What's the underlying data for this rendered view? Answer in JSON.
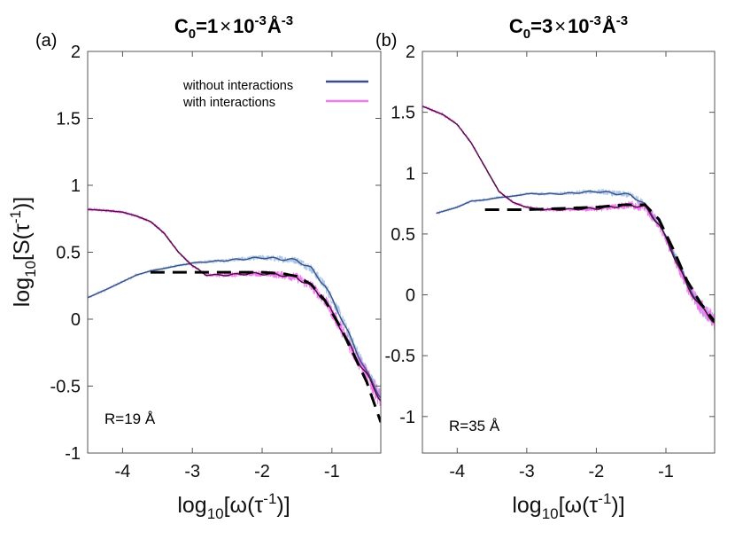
{
  "colors": {
    "without": "#3b4f87",
    "without_light": "#a9c6e6",
    "with": "#4a0d3e",
    "with_light": "#f17cf0",
    "dashed": "#000000"
  },
  "chart_data": [
    {
      "type": "line",
      "panel_label": "(a)",
      "title_parts": {
        "c": "C",
        "c_sub": "0",
        "eq": "=1",
        "times": "×",
        "ten": "10",
        "exp1": "-3",
        "unit": "Å",
        "exp2": "-3"
      },
      "xlabel_parts": {
        "pre": "log",
        "sub": "10",
        "post": "[ω(τ",
        "sup": "-1",
        "end": ")]"
      },
      "ylabel_parts": {
        "pre": "log",
        "sub": "10",
        "post": "[S(τ",
        "sup": "-1",
        "end": ")]"
      },
      "xlim": [
        -4.5,
        -0.3
      ],
      "ylim": [
        -1,
        2
      ],
      "xticks": [
        -4,
        -3,
        -2,
        -1
      ],
      "xtick_labels": [
        "-4",
        "-3",
        "-2",
        "-1"
      ],
      "yticks": [
        -1,
        -0.5,
        0,
        0.5,
        1,
        1.5,
        2
      ],
      "ytick_labels": [
        "-1",
        "-0.5",
        "0",
        "0.5",
        "1",
        "1.5",
        "2"
      ],
      "annotation": "R=19 Å",
      "legend": [
        "without interactions",
        "with interactions"
      ],
      "series": [
        {
          "name": "without interactions",
          "points": [
            [
              -4.5,
              0.16
            ],
            [
              -4.2,
              0.23
            ],
            [
              -4.0,
              0.28
            ],
            [
              -3.8,
              0.33
            ],
            [
              -3.6,
              0.36
            ],
            [
              -3.4,
              0.38
            ],
            [
              -3.2,
              0.4
            ],
            [
              -3.0,
              0.42
            ],
            [
              -2.5,
              0.44
            ],
            [
              -2.0,
              0.46
            ],
            [
              -1.5,
              0.44
            ],
            [
              -1.3,
              0.38
            ],
            [
              -1.1,
              0.25
            ],
            [
              -0.9,
              0.05
            ],
            [
              -0.7,
              -0.18
            ],
            [
              -0.5,
              -0.4
            ],
            [
              -0.3,
              -0.58
            ]
          ]
        },
        {
          "name": "with interactions",
          "points": [
            [
              -4.5,
              0.82
            ],
            [
              -4.2,
              0.81
            ],
            [
              -4.0,
              0.8
            ],
            [
              -3.8,
              0.77
            ],
            [
              -3.6,
              0.73
            ],
            [
              -3.4,
              0.64
            ],
            [
              -3.2,
              0.5
            ],
            [
              -3.0,
              0.4
            ],
            [
              -2.8,
              0.33
            ],
            [
              -2.5,
              0.33
            ],
            [
              -2.2,
              0.34
            ],
            [
              -2.0,
              0.34
            ],
            [
              -1.7,
              0.33
            ],
            [
              -1.5,
              0.31
            ],
            [
              -1.3,
              0.25
            ],
            [
              -1.1,
              0.14
            ],
            [
              -0.9,
              -0.04
            ],
            [
              -0.7,
              -0.24
            ],
            [
              -0.5,
              -0.42
            ],
            [
              -0.3,
              -0.6
            ]
          ]
        },
        {
          "name": "fit",
          "style": "dashed",
          "points": [
            [
              -3.6,
              0.35
            ],
            [
              -3.0,
              0.35
            ],
            [
              -2.5,
              0.35
            ],
            [
              -2.0,
              0.35
            ],
            [
              -1.7,
              0.34
            ],
            [
              -1.5,
              0.32
            ],
            [
              -1.3,
              0.26
            ],
            [
              -1.1,
              0.14
            ],
            [
              -0.9,
              -0.04
            ],
            [
              -0.7,
              -0.25
            ],
            [
              -0.5,
              -0.47
            ],
            [
              -0.3,
              -0.77
            ]
          ]
        }
      ]
    },
    {
      "type": "line",
      "panel_label": "(b)",
      "title_parts": {
        "c": "C",
        "c_sub": "0",
        "eq": "=3",
        "times": "×",
        "ten": "10",
        "exp1": "-3",
        "unit": "Å",
        "exp2": "-3"
      },
      "xlabel_parts": {
        "pre": "log",
        "sub": "10",
        "post": "[ω(τ",
        "sup": "-1",
        "end": ")]"
      },
      "xlim": [
        -4.5,
        -0.3
      ],
      "ylim": [
        -1.3,
        2
      ],
      "xticks": [
        -4,
        -3,
        -2,
        -1
      ],
      "xtick_labels": [
        "-4",
        "-3",
        "-2",
        "-1"
      ],
      "yticks": [
        -1,
        -0.5,
        0,
        0.5,
        1,
        1.5,
        2
      ],
      "ytick_labels": [
        "-1",
        "-0.5",
        "0",
        "0.5",
        "1",
        "1.5",
        "2"
      ],
      "annotation": "R=35 Å",
      "series": [
        {
          "name": "without interactions",
          "points": [
            [
              -4.3,
              0.67
            ],
            [
              -4.0,
              0.72
            ],
            [
              -3.8,
              0.77
            ],
            [
              -3.6,
              0.78
            ],
            [
              -3.4,
              0.8
            ],
            [
              -3.2,
              0.81
            ],
            [
              -3.0,
              0.83
            ],
            [
              -2.5,
              0.83
            ],
            [
              -2.0,
              0.85
            ],
            [
              -1.5,
              0.82
            ],
            [
              -1.3,
              0.74
            ],
            [
              -1.1,
              0.58
            ],
            [
              -0.9,
              0.36
            ],
            [
              -0.7,
              0.1
            ],
            [
              -0.5,
              -0.1
            ],
            [
              -0.3,
              -0.22
            ]
          ]
        },
        {
          "name": "with interactions",
          "points": [
            [
              -4.5,
              1.55
            ],
            [
              -4.2,
              1.48
            ],
            [
              -4.0,
              1.4
            ],
            [
              -3.8,
              1.25
            ],
            [
              -3.6,
              1.05
            ],
            [
              -3.4,
              0.85
            ],
            [
              -3.2,
              0.76
            ],
            [
              -3.0,
              0.72
            ],
            [
              -2.8,
              0.7
            ],
            [
              -2.5,
              0.7
            ],
            [
              -2.0,
              0.71
            ],
            [
              -1.5,
              0.74
            ],
            [
              -1.3,
              0.72
            ],
            [
              -1.1,
              0.58
            ],
            [
              -0.9,
              0.34
            ],
            [
              -0.7,
              0.08
            ],
            [
              -0.5,
              -0.1
            ],
            [
              -0.3,
              -0.22
            ]
          ]
        },
        {
          "name": "fit",
          "style": "dashed",
          "points": [
            [
              -3.6,
              0.7
            ],
            [
              -3.0,
              0.7
            ],
            [
              -2.5,
              0.71
            ],
            [
              -2.0,
              0.72
            ],
            [
              -1.6,
              0.74
            ],
            [
              -1.3,
              0.74
            ],
            [
              -1.1,
              0.62
            ],
            [
              -0.9,
              0.38
            ],
            [
              -0.7,
              0.12
            ],
            [
              -0.5,
              -0.07
            ],
            [
              -0.3,
              -0.22
            ]
          ]
        }
      ]
    }
  ]
}
